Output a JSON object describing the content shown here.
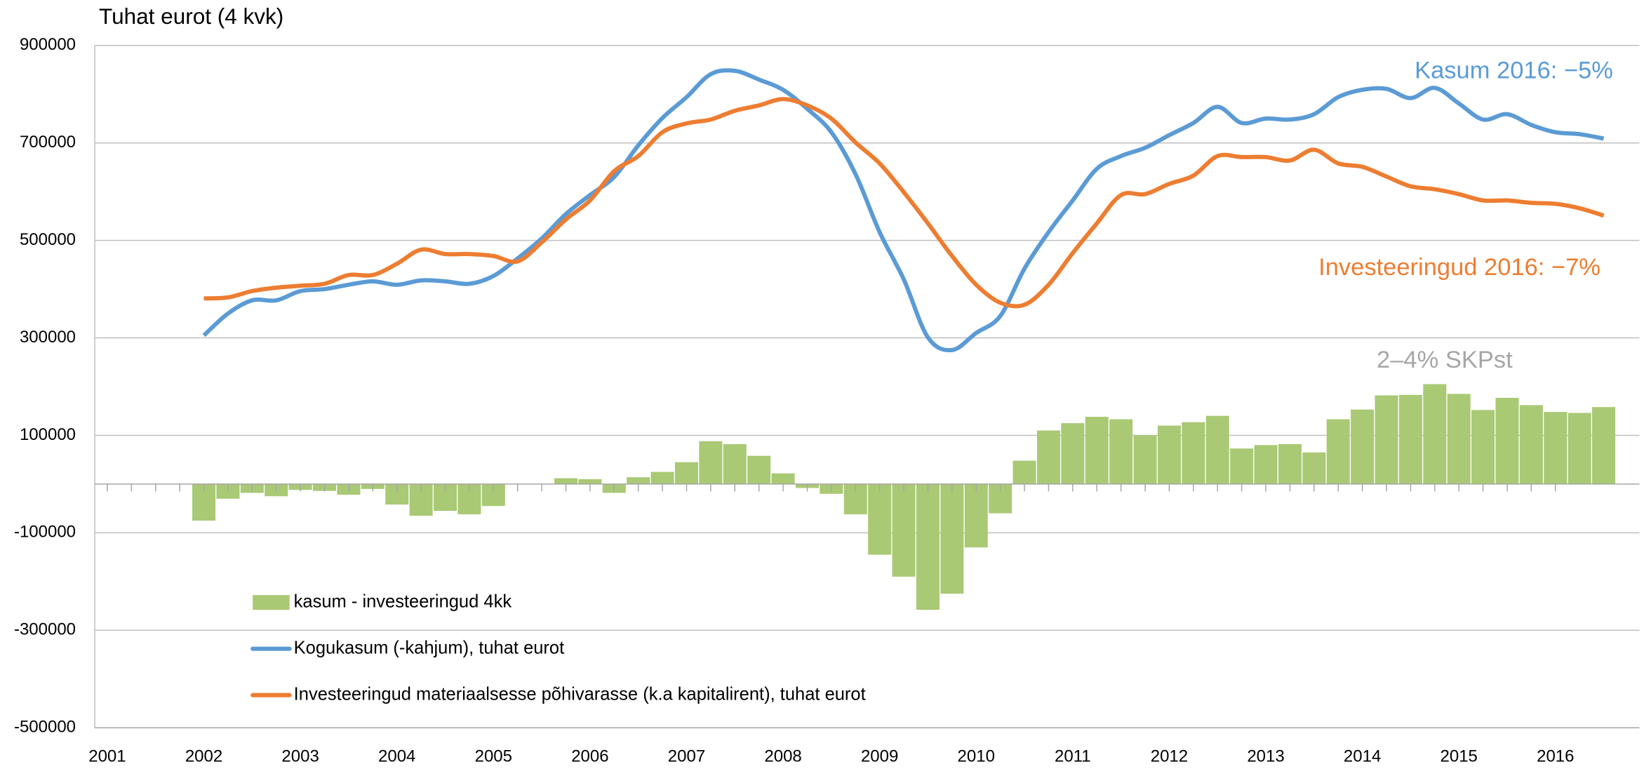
{
  "chart_data": {
    "type": "bar",
    "title": "Tuhat eurot (4 kvk)",
    "x": [
      2002,
      2002.25,
      2002.5,
      2002.75,
      2003,
      2003.25,
      2003.5,
      2003.75,
      2004,
      2004.25,
      2004.5,
      2004.75,
      2005,
      2005.25,
      2005.5,
      2005.75,
      2006,
      2006.25,
      2006.5,
      2006.75,
      2007,
      2007.25,
      2007.5,
      2007.75,
      2008,
      2008.25,
      2008.5,
      2008.75,
      2009,
      2009.25,
      2009.5,
      2009.75,
      2010,
      2010.25,
      2010.5,
      2010.75,
      2011,
      2011.25,
      2011.5,
      2011.75,
      2012,
      2012.25,
      2012.5,
      2012.75,
      2013,
      2013.25,
      2013.5,
      2013.75,
      2014,
      2014.25,
      2014.5,
      2014.75,
      2015,
      2015.25,
      2015.5,
      2015.75,
      2016,
      2016.25,
      2016.5
    ],
    "series": [
      {
        "name": "kasum - investeeringud 4kk",
        "type": "bar",
        "color": "#a9c974",
        "values": [
          -75000,
          -30000,
          -18000,
          -25000,
          -12000,
          -14000,
          -22000,
          -10000,
          -42000,
          -65000,
          -55000,
          -62000,
          -45000,
          0,
          0,
          12000,
          10000,
          -18000,
          14000,
          25000,
          45000,
          88000,
          82000,
          58000,
          22000,
          -8000,
          -20000,
          -62000,
          -145000,
          -190000,
          -258000,
          -225000,
          -130000,
          -60000,
          48000,
          110000,
          125000,
          138000,
          133000,
          100000,
          120000,
          127000,
          140000,
          73000,
          80000,
          82000,
          65000,
          133000,
          153000,
          182000,
          183000,
          205000,
          185000,
          152000,
          177000,
          162000,
          148000,
          146000,
          158000
        ]
      },
      {
        "name": "Kogukasum (-kahjum), tuhat eurot",
        "type": "line",
        "color": "#5b9bd5",
        "values": [
          305000,
          350000,
          377000,
          377000,
          396000,
          400000,
          409000,
          416000,
          409000,
          418000,
          416000,
          411000,
          427000,
          463000,
          504000,
          554000,
          593000,
          630000,
          695000,
          751000,
          794000,
          841000,
          848000,
          830000,
          809000,
          770000,
          722000,
          636000,
          517000,
          420000,
          301000,
          275000,
          310000,
          345000,
          442000,
          517000,
          582000,
          647000,
          673000,
          690000,
          716000,
          741000,
          774000,
          741000,
          750000,
          748000,
          759000,
          794000,
          809000,
          811000,
          792000,
          813000,
          781000,
          748000,
          759000,
          737000,
          722000,
          718000,
          709000
        ]
      },
      {
        "name": "Investeeringud materiaalsesse põhivarasse (k.a kapitalirent), tuhat eurot",
        "type": "line",
        "color": "#ed7d31",
        "values": [
          381000,
          383000,
          396000,
          403000,
          407000,
          411000,
          429000,
          429000,
          452000,
          481000,
          472000,
          472000,
          468000,
          457000,
          496000,
          543000,
          582000,
          642000,
          673000,
          722000,
          740000,
          748000,
          766000,
          777000,
          790000,
          777000,
          750000,
          701000,
          658000,
          599000,
          535000,
          468000,
          409000,
          372000,
          368000,
          409000,
          474000,
          535000,
          593000,
          595000,
          616000,
          633000,
          673000,
          671000,
          671000,
          664000,
          686000,
          658000,
          651000,
          631000,
          611000,
          605000,
          595000,
          582000,
          582000,
          577000,
          575000,
          566000,
          551000
        ]
      }
    ],
    "annotations": [
      {
        "text": "Kasum 2016: −5%",
        "color": "#5b9bd5"
      },
      {
        "text": "Investeeringud 2016: −7%",
        "color": "#ed7d31"
      },
      {
        "text": "2–4% SKPst",
        "color": "#a6a6a6"
      }
    ],
    "xlim": [
      2000.87,
      2016.87
    ],
    "xticks": [
      2001,
      2002,
      2003,
      2004,
      2005,
      2006,
      2007,
      2008,
      2009,
      2010,
      2011,
      2012,
      2013,
      2014,
      2015,
      2016
    ],
    "ylim": [
      -500000,
      900000
    ],
    "yticks": [
      -500000,
      -300000,
      -100000,
      100000,
      300000,
      500000,
      700000,
      900000
    ],
    "grid": true
  }
}
